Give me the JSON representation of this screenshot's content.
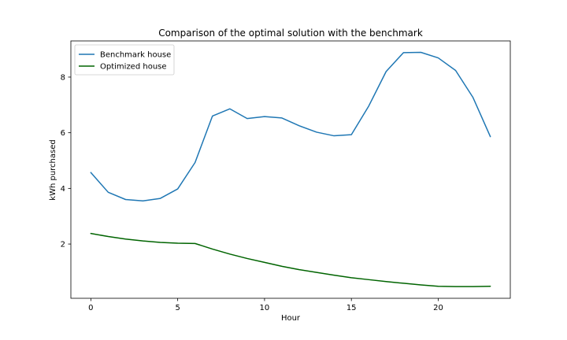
{
  "chart_data": {
    "type": "line",
    "title": "Comparison of the optimal solution with the benchmark",
    "xlabel": "Hour",
    "ylabel": "kWh purchased",
    "xlim": [
      -1.15,
      24.15
    ],
    "ylim": [
      0.05,
      9.3
    ],
    "xticks": [
      0,
      5,
      10,
      15,
      20
    ],
    "yticks": [
      2,
      4,
      6,
      8
    ],
    "grid": false,
    "legend_position": "top-left",
    "x": [
      0,
      1,
      2,
      3,
      4,
      5,
      6,
      7,
      8,
      9,
      10,
      11,
      12,
      13,
      14,
      15,
      16,
      17,
      18,
      19,
      20,
      21,
      22,
      23
    ],
    "series": [
      {
        "name": "Benchmark house",
        "color": "#1f77b4",
        "values": [
          4.57,
          3.86,
          3.6,
          3.55,
          3.64,
          3.98,
          4.93,
          6.6,
          6.86,
          6.51,
          6.58,
          6.53,
          6.25,
          6.02,
          5.89,
          5.93,
          6.96,
          8.2,
          8.88,
          8.89,
          8.69,
          8.24,
          7.27,
          5.86
        ]
      },
      {
        "name": "Optimized house",
        "color": "#006400",
        "values": [
          2.38,
          2.27,
          2.18,
          2.11,
          2.06,
          2.03,
          2.02,
          1.82,
          1.64,
          1.48,
          1.34,
          1.2,
          1.08,
          0.98,
          0.88,
          0.79,
          0.72,
          0.65,
          0.59,
          0.53,
          0.48,
          0.47,
          0.47,
          0.48
        ]
      }
    ]
  }
}
